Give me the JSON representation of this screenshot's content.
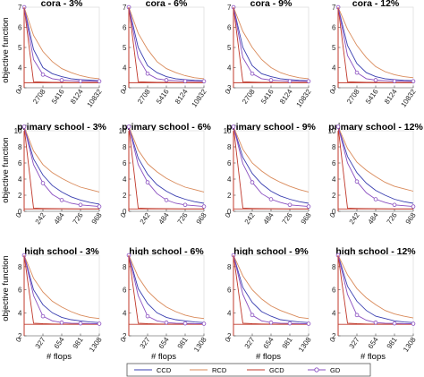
{
  "figure": {
    "ylabel": "objective function",
    "xlabel": "# flops",
    "colors": {
      "CCD": "#3a3fb0",
      "RCD": "#d98a5a",
      "GCD": "#c0392b",
      "GD": "#8a4fc0",
      "ref": "#c0392b"
    }
  },
  "legend": {
    "entries": [
      "CCD",
      "RCD",
      "GCD",
      "GD"
    ]
  },
  "chart_data": [
    {
      "type": "line",
      "title": "cora - 3%",
      "ylim": [
        3,
        7
      ],
      "yticks": [
        3,
        4,
        5,
        6,
        7
      ],
      "xlim": [
        0,
        10832
      ],
      "xticks": [
        0,
        2708,
        5416,
        8124,
        10832
      ],
      "reference": 3.25,
      "x": [
        0,
        1354,
        2708,
        4062,
        5416,
        6770,
        8124,
        9478,
        10832
      ],
      "series": [
        {
          "name": "CCD",
          "values": [
            7,
            4.9,
            4.0,
            3.7,
            3.55,
            3.45,
            3.4,
            3.38,
            3.35
          ]
        },
        {
          "name": "RCD",
          "values": [
            7,
            5.6,
            4.8,
            4.3,
            3.95,
            3.75,
            3.6,
            3.5,
            3.45
          ]
        },
        {
          "name": "GCD",
          "values": [
            7,
            3.3,
            3.28,
            3.27,
            3.27,
            3.26,
            3.26,
            3.26,
            3.26
          ]
        },
        {
          "name": "GD",
          "values": [
            7,
            4.4,
            3.65,
            3.45,
            3.38,
            3.35,
            3.33,
            3.32,
            3.32
          ],
          "marker_every": 2
        }
      ]
    },
    {
      "type": "line",
      "title": "cora - 6%",
      "ylim": [
        3,
        7
      ],
      "yticks": [
        3,
        4,
        5,
        6,
        7
      ],
      "xlim": [
        0,
        10832
      ],
      "xticks": [
        0,
        2708,
        5416,
        8124,
        10832
      ],
      "reference": 3.25,
      "x": [
        0,
        1354,
        2708,
        4062,
        5416,
        6770,
        8124,
        9478,
        10832
      ],
      "series": [
        {
          "name": "CCD",
          "values": [
            7,
            5.0,
            4.1,
            3.75,
            3.55,
            3.45,
            3.4,
            3.37,
            3.35
          ]
        },
        {
          "name": "RCD",
          "values": [
            7,
            5.7,
            4.9,
            4.3,
            3.95,
            3.75,
            3.6,
            3.5,
            3.45
          ]
        },
        {
          "name": "GCD",
          "values": [
            7,
            3.3,
            3.28,
            3.27,
            3.27,
            3.26,
            3.26,
            3.26,
            3.26
          ]
        },
        {
          "name": "GD",
          "values": [
            7,
            4.5,
            3.7,
            3.45,
            3.38,
            3.35,
            3.33,
            3.32,
            3.32
          ],
          "marker_every": 2
        }
      ]
    },
    {
      "type": "line",
      "title": "cora - 9%",
      "ylim": [
        3,
        7
      ],
      "yticks": [
        3,
        4,
        5,
        6,
        7
      ],
      "xlim": [
        0,
        10832
      ],
      "xticks": [
        0,
        2708,
        5416,
        8124,
        10832
      ],
      "reference": 3.25,
      "x": [
        0,
        1354,
        2708,
        4062,
        5416,
        6770,
        8124,
        9478,
        10832
      ],
      "series": [
        {
          "name": "CCD",
          "values": [
            7,
            5.0,
            4.1,
            3.7,
            3.55,
            3.45,
            3.4,
            3.37,
            3.35
          ]
        },
        {
          "name": "RCD",
          "values": [
            7,
            5.8,
            5.0,
            4.4,
            4.0,
            3.75,
            3.6,
            3.5,
            3.45
          ]
        },
        {
          "name": "GCD",
          "values": [
            7,
            3.3,
            3.28,
            3.27,
            3.27,
            3.26,
            3.26,
            3.26,
            3.26
          ]
        },
        {
          "name": "GD",
          "values": [
            7,
            4.5,
            3.7,
            3.45,
            3.38,
            3.35,
            3.33,
            3.32,
            3.32
          ],
          "marker_every": 2
        }
      ]
    },
    {
      "type": "line",
      "title": "cora - 12%",
      "ylim": [
        3,
        7
      ],
      "yticks": [
        3,
        4,
        5,
        6,
        7
      ],
      "xlim": [
        0,
        10832
      ],
      "xticks": [
        0,
        2708,
        5416,
        8124,
        10832
      ],
      "reference": 3.25,
      "x": [
        0,
        1354,
        2708,
        4062,
        5416,
        6770,
        8124,
        9478,
        10832
      ],
      "series": [
        {
          "name": "CCD",
          "values": [
            7,
            5.1,
            4.2,
            3.75,
            3.55,
            3.45,
            3.4,
            3.37,
            3.35
          ]
        },
        {
          "name": "RCD",
          "values": [
            7,
            5.9,
            5.1,
            4.5,
            4.05,
            3.8,
            3.65,
            3.55,
            3.5
          ]
        },
        {
          "name": "GCD",
          "values": [
            7,
            3.3,
            3.28,
            3.27,
            3.27,
            3.26,
            3.26,
            3.26,
            3.26
          ]
        },
        {
          "name": "GD",
          "values": [
            7,
            4.6,
            3.75,
            3.45,
            3.38,
            3.35,
            3.33,
            3.32,
            3.32
          ],
          "marker_every": 2
        }
      ]
    },
    {
      "type": "line",
      "title": "primary school - 3%",
      "ylim": [
        0,
        10
      ],
      "yticks": [
        0,
        2,
        4,
        6,
        8,
        10
      ],
      "xlim": [
        0,
        968
      ],
      "xticks": [
        0,
        242,
        484,
        726,
        968
      ],
      "reference": 0.3,
      "x": [
        0,
        121,
        242,
        363,
        484,
        605,
        726,
        847,
        968
      ],
      "series": [
        {
          "name": "CCD",
          "values": [
            10.5,
            6.5,
            4.5,
            3.2,
            2.4,
            1.8,
            1.4,
            1.1,
            0.9
          ]
        },
        {
          "name": "RCD",
          "values": [
            10.5,
            7.5,
            5.8,
            4.8,
            4.1,
            3.5,
            3.0,
            2.7,
            2.4
          ]
        },
        {
          "name": "GCD",
          "values": [
            10.5,
            0.4,
            0.35,
            0.33,
            0.32,
            0.31,
            0.3,
            0.3,
            0.3
          ]
        },
        {
          "name": "GD",
          "values": [
            10.5,
            5.8,
            3.5,
            2.1,
            1.4,
            1.0,
            0.8,
            0.7,
            0.6
          ],
          "marker_every": 2
        }
      ]
    },
    {
      "type": "line",
      "title": "primary school - 6%",
      "ylim": [
        0,
        10
      ],
      "yticks": [
        0,
        2,
        4,
        6,
        8,
        10
      ],
      "xlim": [
        0,
        968
      ],
      "xticks": [
        0,
        242,
        484,
        726,
        968
      ],
      "reference": 0.3,
      "x": [
        0,
        121,
        242,
        363,
        484,
        605,
        726,
        847,
        968
      ],
      "series": [
        {
          "name": "CCD",
          "values": [
            10.5,
            6.6,
            4.6,
            3.3,
            2.5,
            1.9,
            1.5,
            1.2,
            1.0
          ]
        },
        {
          "name": "RCD",
          "values": [
            10.5,
            7.6,
            5.9,
            4.9,
            4.1,
            3.5,
            3.0,
            2.7,
            2.4
          ]
        },
        {
          "name": "GCD",
          "values": [
            10.5,
            0.4,
            0.35,
            0.33,
            0.32,
            0.31,
            0.3,
            0.3,
            0.3
          ]
        },
        {
          "name": "GD",
          "values": [
            10.5,
            5.8,
            3.6,
            2.2,
            1.4,
            1.0,
            0.8,
            0.7,
            0.6
          ],
          "marker_every": 2
        }
      ]
    },
    {
      "type": "line",
      "title": "primary school - 9%",
      "ylim": [
        0,
        10
      ],
      "yticks": [
        0,
        2,
        4,
        6,
        8,
        10
      ],
      "xlim": [
        0,
        968
      ],
      "xticks": [
        0,
        242,
        484,
        726,
        968
      ],
      "reference": 0.3,
      "x": [
        0,
        121,
        242,
        363,
        484,
        605,
        726,
        847,
        968
      ],
      "series": [
        {
          "name": "CCD",
          "values": [
            10.5,
            6.7,
            4.7,
            3.4,
            2.5,
            1.9,
            1.5,
            1.2,
            1.0
          ]
        },
        {
          "name": "RCD",
          "values": [
            10.5,
            7.7,
            6.0,
            5.0,
            4.2,
            3.6,
            3.1,
            2.7,
            2.4
          ]
        },
        {
          "name": "GCD",
          "values": [
            10.5,
            0.4,
            0.35,
            0.33,
            0.32,
            0.31,
            0.3,
            0.3,
            0.3
          ]
        },
        {
          "name": "GD",
          "values": [
            10.5,
            5.9,
            3.6,
            2.2,
            1.5,
            1.1,
            0.8,
            0.7,
            0.6
          ],
          "marker_every": 2
        }
      ]
    },
    {
      "type": "line",
      "title": "primary school - 12%",
      "ylim": [
        0,
        10
      ],
      "yticks": [
        0,
        2,
        4,
        6,
        8,
        10
      ],
      "xlim": [
        0,
        968
      ],
      "xticks": [
        0,
        242,
        484,
        726,
        968
      ],
      "reference": 0.3,
      "x": [
        0,
        121,
        242,
        363,
        484,
        605,
        726,
        847,
        968
      ],
      "series": [
        {
          "name": "CCD",
          "values": [
            10.5,
            6.8,
            4.8,
            3.5,
            2.6,
            2.0,
            1.5,
            1.2,
            1.0
          ]
        },
        {
          "name": "RCD",
          "values": [
            10.5,
            7.8,
            6.1,
            5.1,
            4.3,
            3.6,
            3.1,
            2.8,
            2.5
          ]
        },
        {
          "name": "GCD",
          "values": [
            10.5,
            0.4,
            0.35,
            0.33,
            0.32,
            0.31,
            0.3,
            0.3,
            0.3
          ]
        },
        {
          "name": "GD",
          "values": [
            10.5,
            6.0,
            3.7,
            2.3,
            1.5,
            1.1,
            0.8,
            0.7,
            0.6
          ],
          "marker_every": 2
        }
      ]
    },
    {
      "type": "line",
      "title": "high school - 3%",
      "ylim": [
        2,
        9
      ],
      "yticks": [
        2,
        4,
        6,
        8
      ],
      "xlim": [
        0,
        1308
      ],
      "xticks": [
        0,
        327,
        654,
        981,
        1308
      ],
      "reference": 3.0,
      "x": [
        0,
        163.5,
        327,
        490.5,
        654,
        817.5,
        981,
        1144.5,
        1308
      ],
      "series": [
        {
          "name": "CCD",
          "values": [
            9,
            6.0,
            4.7,
            4.0,
            3.6,
            3.4,
            3.3,
            3.2,
            3.15
          ]
        },
        {
          "name": "RCD",
          "values": [
            9,
            7.0,
            5.8,
            5.0,
            4.5,
            4.1,
            3.8,
            3.6,
            3.5
          ]
        },
        {
          "name": "GCD",
          "values": [
            9,
            3.1,
            3.05,
            3.03,
            3.02,
            3.01,
            3.0,
            3.0,
            3.0
          ]
        },
        {
          "name": "GD",
          "values": [
            9,
            5.5,
            3.7,
            3.3,
            3.15,
            3.1,
            3.08,
            3.06,
            3.05
          ],
          "marker_every": 2
        }
      ]
    },
    {
      "type": "line",
      "title": "high school - 6%",
      "ylim": [
        2,
        9
      ],
      "yticks": [
        2,
        4,
        6,
        8
      ],
      "xlim": [
        0,
        1308
      ],
      "xticks": [
        0,
        327,
        654,
        981,
        1308
      ],
      "reference": 3.0,
      "x": [
        0,
        163.5,
        327,
        490.5,
        654,
        817.5,
        981,
        1144.5,
        1308
      ],
      "series": [
        {
          "name": "CCD",
          "values": [
            9,
            6.1,
            4.8,
            4.0,
            3.6,
            3.4,
            3.3,
            3.2,
            3.15
          ]
        },
        {
          "name": "RCD",
          "values": [
            9,
            7.1,
            5.9,
            5.1,
            4.5,
            4.1,
            3.8,
            3.6,
            3.5
          ]
        },
        {
          "name": "GCD",
          "values": [
            9,
            3.1,
            3.05,
            3.03,
            3.02,
            3.01,
            3.0,
            3.0,
            3.0
          ]
        },
        {
          "name": "GD",
          "values": [
            9,
            5.5,
            3.7,
            3.3,
            3.15,
            3.1,
            3.08,
            3.06,
            3.05
          ],
          "marker_every": 2
        }
      ]
    },
    {
      "type": "line",
      "title": "high school - 9%",
      "ylim": [
        2,
        9
      ],
      "yticks": [
        2,
        4,
        6,
        8
      ],
      "xlim": [
        0,
        1308
      ],
      "xticks": [
        0,
        327,
        654,
        981,
        1308
      ],
      "reference": 3.0,
      "x": [
        0,
        163.5,
        327,
        490.5,
        654,
        817.5,
        981,
        1144.5,
        1308
      ],
      "series": [
        {
          "name": "CCD",
          "values": [
            9,
            6.2,
            4.9,
            4.1,
            3.7,
            3.4,
            3.3,
            3.2,
            3.15
          ]
        },
        {
          "name": "RCD",
          "values": [
            9,
            7.2,
            6.0,
            5.2,
            4.6,
            4.2,
            3.9,
            3.6,
            3.5
          ]
        },
        {
          "name": "GCD",
          "values": [
            9,
            3.1,
            3.05,
            3.03,
            3.02,
            3.01,
            3.0,
            3.0,
            3.0
          ]
        },
        {
          "name": "GD",
          "values": [
            9,
            5.6,
            3.8,
            3.3,
            3.15,
            3.1,
            3.08,
            3.06,
            3.05
          ],
          "marker_every": 2
        }
      ]
    },
    {
      "type": "line",
      "title": "high school - 12%",
      "ylim": [
        2,
        9
      ],
      "yticks": [
        2,
        4,
        6,
        8
      ],
      "xlim": [
        0,
        1308
      ],
      "xticks": [
        0,
        327,
        654,
        981,
        1308
      ],
      "reference": 3.0,
      "x": [
        0,
        163.5,
        327,
        490.5,
        654,
        817.5,
        981,
        1144.5,
        1308
      ],
      "series": [
        {
          "name": "CCD",
          "values": [
            9,
            6.3,
            5.0,
            4.2,
            3.7,
            3.5,
            3.3,
            3.2,
            3.15
          ]
        },
        {
          "name": "RCD",
          "values": [
            9,
            7.3,
            6.1,
            5.3,
            4.7,
            4.2,
            3.9,
            3.7,
            3.55
          ]
        },
        {
          "name": "GCD",
          "values": [
            9,
            3.1,
            3.05,
            3.03,
            3.02,
            3.01,
            3.0,
            3.0,
            3.0
          ]
        },
        {
          "name": "GD",
          "values": [
            9,
            5.6,
            3.8,
            3.35,
            3.15,
            3.1,
            3.08,
            3.06,
            3.05
          ],
          "marker_every": 2
        }
      ]
    }
  ]
}
